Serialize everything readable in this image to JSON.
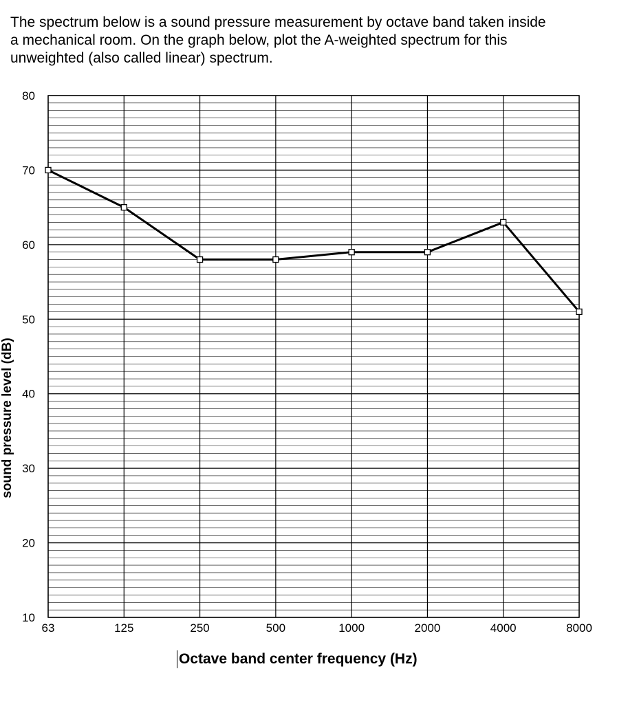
{
  "question_text": {
    "line1": "The spectrum below is a sound pressure measurement by octave band taken inside",
    "line2": "a mechanical room.  On the graph below, plot the A-weighted spectrum for this",
    "line3": "unweighted (also called linear) spectrum."
  },
  "chart_data": {
    "type": "line",
    "title": "",
    "xlabel": "Octave band center frequency (Hz)",
    "ylabel": "sound pressure level (dB)",
    "categories": [
      "63",
      "125",
      "250",
      "500",
      "1000",
      "2000",
      "4000",
      "8000"
    ],
    "series": [
      {
        "values": [
          70,
          65,
          58,
          58,
          59,
          59,
          63,
          51
        ]
      }
    ],
    "ylim": [
      10,
      80
    ],
    "yticks": [
      10,
      20,
      30,
      40,
      50,
      60,
      70,
      80
    ],
    "y_minor_step": 1,
    "grid": true,
    "markers": "open-square",
    "colors": {
      "line": "#000000",
      "grid": "#000000",
      "marker_fill": "#ffffff"
    }
  }
}
